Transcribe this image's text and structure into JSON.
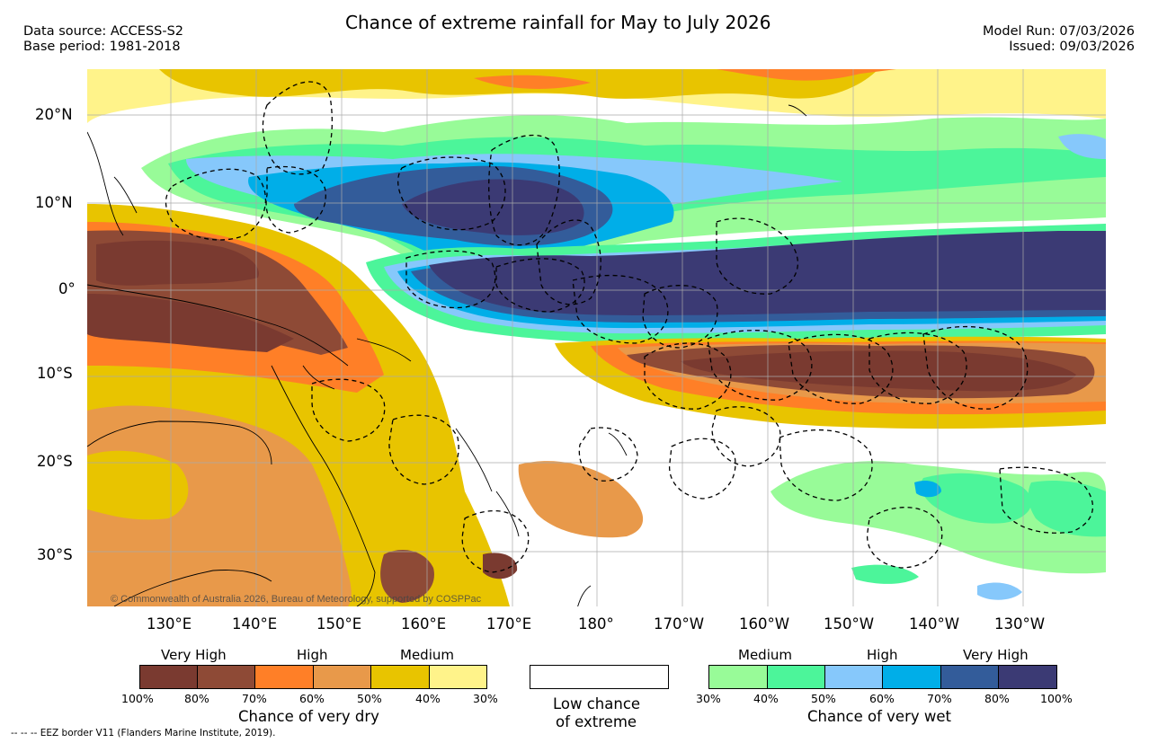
{
  "title": "Chance of extreme rainfall for May to July 2026",
  "header": {
    "data_source": "Data source: ACCESS-S2",
    "base_period": "Base period: 1981-2018",
    "model_run": "Model Run: 07/03/2026",
    "issued": "Issued: 09/03/2026"
  },
  "map": {
    "lat_labels": [
      "20°N",
      "10°N",
      "0°",
      "10°S",
      "20°S",
      "30°S"
    ],
    "lon_labels": [
      "130°E",
      "140°E",
      "150°E",
      "160°E",
      "170°E",
      "180°",
      "170°W",
      "160°W",
      "150°W",
      "140°W",
      "130°W"
    ],
    "copyright": "© Commonwealth of Australia 2026, Bureau of Meteorology, supported by COSPPac"
  },
  "legend": {
    "dry": {
      "headers": [
        "Very High",
        "High",
        "Medium"
      ],
      "ticks": [
        "100%",
        "80%",
        "70%",
        "60%",
        "50%",
        "40%",
        "30%"
      ],
      "colors": [
        "#7a3a30",
        "#8e4a36",
        "#ff7f27",
        "#e8994a",
        "#e8c400",
        "#fff38a"
      ],
      "caption": "Chance of very dry"
    },
    "low": {
      "caption_line1": "Low chance",
      "caption_line2": "of extreme"
    },
    "wet": {
      "headers": [
        "Medium",
        "High",
        "Very High"
      ],
      "ticks": [
        "30%",
        "40%",
        "50%",
        "60%",
        "70%",
        "80%",
        "100%"
      ],
      "colors": [
        "#98fb98",
        "#4cf59a",
        "#86c8fb",
        "#00aee8",
        "#335c9a",
        "#3b3a74"
      ],
      "caption": "Chance of very wet"
    }
  },
  "footnote": "-- -- -- EEZ border V11 (Flanders Marine Institute, 2019)."
}
